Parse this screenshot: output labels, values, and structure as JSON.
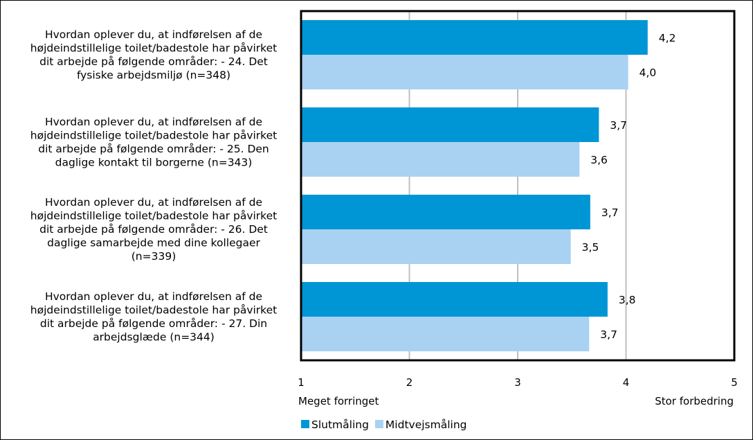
{
  "chart_data": {
    "type": "bar",
    "orientation": "horizontal",
    "categories": [
      "Hvordan oplever du, at indførelsen af de højdeindstillelige toilet/badestole har påvirket dit arbejde på følgende områder: - 24. Det fysiske arbejdsmiljø (n=348)",
      "Hvordan oplever du, at indførelsen af de højdeindstillelige toilet/badestole har påvirket dit arbejde på følgende områder: - 25. Den daglige kontakt til borgerne (n=343)",
      "Hvordan oplever du, at indførelsen af de højdeindstillelige toilet/badestole har påvirket dit arbejde på følgende områder: - 26. Det daglige samarbejde med dine kollegaer (n=339)",
      "Hvordan oplever du, at indførelsen af de højdeindstillelige toilet/badestole har påvirket dit arbejde på følgende områder: - 27. Din arbejdsglæde (n=344)"
    ],
    "category_lines": [
      [
        "Hvordan oplever du, at indførelsen af de",
        "højdeindstillelige toilet/badestole har påvirket",
        "dit arbejde på følgende områder: - 24. Det",
        "fysiske arbejdsmiljø (n=348)"
      ],
      [
        "Hvordan oplever du, at indførelsen af de",
        "højdeindstillelige toilet/badestole har påvirket",
        "dit arbejde på følgende områder: - 25. Den",
        "daglige kontakt til borgerne (n=343)"
      ],
      [
        "Hvordan oplever du, at indførelsen af de",
        "højdeindstillelige toilet/badestole har påvirket",
        "dit arbejde på følgende områder: - 26. Det",
        "daglige samarbejde med dine kollegaer",
        "(n=339)"
      ],
      [
        "Hvordan oplever du, at indførelsen af de",
        "højdeindstillelige toilet/badestole har påvirket",
        "dit arbejde på følgende områder: - 27. Din",
        "arbejdsglæde (n=344)"
      ]
    ],
    "series": [
      {
        "name": "Slutmåling",
        "values": [
          4.2,
          3.75,
          3.67,
          3.83
        ],
        "labels": [
          "4,2",
          "3,7",
          "3,7",
          "3,8"
        ],
        "color": "#0096d6"
      },
      {
        "name": "Midtvejsmåling",
        "values": [
          4.02,
          3.57,
          3.49,
          3.66
        ],
        "labels": [
          "4,0",
          "3,6",
          "3,5",
          "3,7"
        ],
        "color": "#a9d1f2"
      }
    ],
    "xlim": [
      1,
      5
    ],
    "x_ticks": [
      "1",
      "2",
      "3",
      "4",
      "5"
    ],
    "x_tick_values": [
      1,
      2,
      3,
      4,
      5
    ],
    "x_end_labels": {
      "left": "Meget forringet",
      "right": "Stor forbedring"
    },
    "grid": true,
    "legend_position": "bottom-left",
    "gridline_color": "#bfbfbf"
  }
}
